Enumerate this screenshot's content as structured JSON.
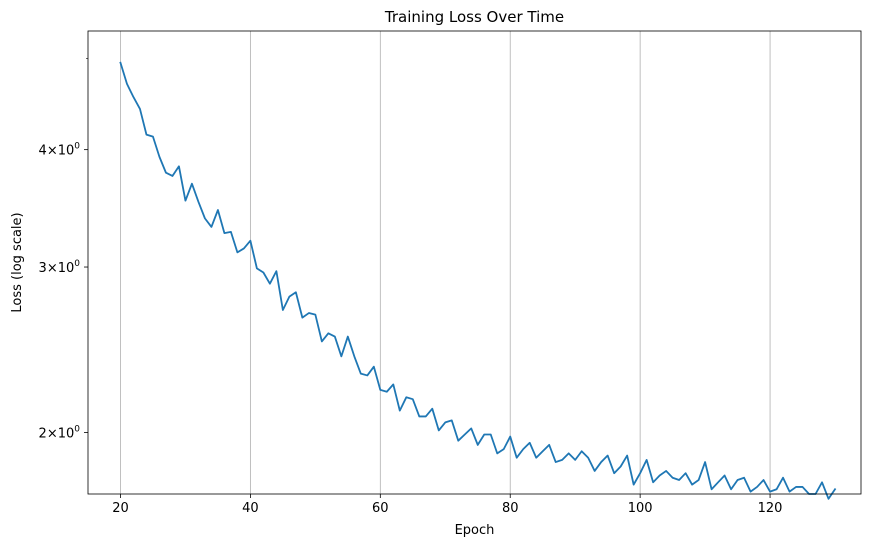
{
  "chart_data": {
    "type": "line",
    "title": "Training Loss Over Time",
    "xlabel": "Epoch",
    "ylabel": "Loss (log scale)",
    "xlim": [
      15,
      134
    ],
    "ylim": [
      1.72,
      5.35
    ],
    "yscale": "log",
    "grid": {
      "x": true,
      "y": false
    },
    "x_ticks": [
      {
        "value": 20,
        "label": "20"
      },
      {
        "value": 40,
        "label": "40"
      },
      {
        "value": 60,
        "label": "60"
      },
      {
        "value": 80,
        "label": "80"
      },
      {
        "value": 100,
        "label": "100"
      },
      {
        "value": 120,
        "label": "120"
      }
    ],
    "y_ticks": [
      {
        "value": 2,
        "base": "2",
        "exp": "0"
      },
      {
        "value": 3,
        "base": "3",
        "exp": "0"
      },
      {
        "value": 4,
        "base": "4",
        "exp": "0"
      }
    ],
    "y_minor_ticks": [
      5
    ],
    "line_color": "#1f77b4",
    "series": [
      {
        "x": [
          20,
          21,
          22,
          23,
          24,
          25,
          26,
          27,
          28,
          29,
          30,
          31,
          32,
          33,
          34,
          35,
          36,
          37,
          38,
          39,
          40,
          41,
          42,
          43,
          44,
          45,
          46,
          47,
          48,
          49,
          50,
          51,
          52,
          53,
          54,
          55,
          56,
          57,
          58,
          59,
          60,
          61,
          62,
          63,
          64,
          65,
          66,
          67,
          68,
          69,
          70,
          71,
          72,
          73,
          74,
          75,
          76,
          77,
          78,
          79,
          80,
          81,
          82,
          83,
          84,
          85,
          86,
          87,
          88,
          89,
          90,
          91,
          92,
          93,
          94,
          95,
          96,
          97,
          98,
          99,
          100,
          101,
          102,
          103,
          104,
          105,
          106,
          107,
          108,
          109,
          110,
          111,
          112,
          113,
          114,
          115,
          116,
          117,
          118,
          119,
          120,
          121,
          122,
          123,
          124,
          125,
          126,
          127,
          128,
          129,
          130
        ],
        "values": [
          4.95,
          4.7,
          4.55,
          4.42,
          4.15,
          4.13,
          3.93,
          3.78,
          3.75,
          3.84,
          3.53,
          3.68,
          3.52,
          3.38,
          3.31,
          3.45,
          3.26,
          3.27,
          3.11,
          3.14,
          3.2,
          2.99,
          2.96,
          2.88,
          2.97,
          2.7,
          2.79,
          2.82,
          2.65,
          2.68,
          2.67,
          2.5,
          2.55,
          2.53,
          2.41,
          2.53,
          2.41,
          2.31,
          2.3,
          2.35,
          2.22,
          2.21,
          2.25,
          2.11,
          2.18,
          2.17,
          2.08,
          2.08,
          2.12,
          2.01,
          2.05,
          2.06,
          1.96,
          1.99,
          2.02,
          1.94,
          1.99,
          1.99,
          1.9,
          1.92,
          1.98,
          1.88,
          1.92,
          1.95,
          1.88,
          1.91,
          1.94,
          1.86,
          1.87,
          1.9,
          1.87,
          1.91,
          1.88,
          1.82,
          1.86,
          1.89,
          1.81,
          1.84,
          1.89,
          1.76,
          1.81,
          1.87,
          1.77,
          1.8,
          1.82,
          1.79,
          1.78,
          1.81,
          1.76,
          1.78,
          1.86,
          1.74,
          1.77,
          1.8,
          1.74,
          1.78,
          1.79,
          1.73,
          1.75,
          1.78,
          1.73,
          1.74,
          1.79,
          1.73,
          1.75,
          1.75,
          1.72,
          1.72,
          1.77,
          1.7,
          1.74
        ]
      }
    ]
  }
}
